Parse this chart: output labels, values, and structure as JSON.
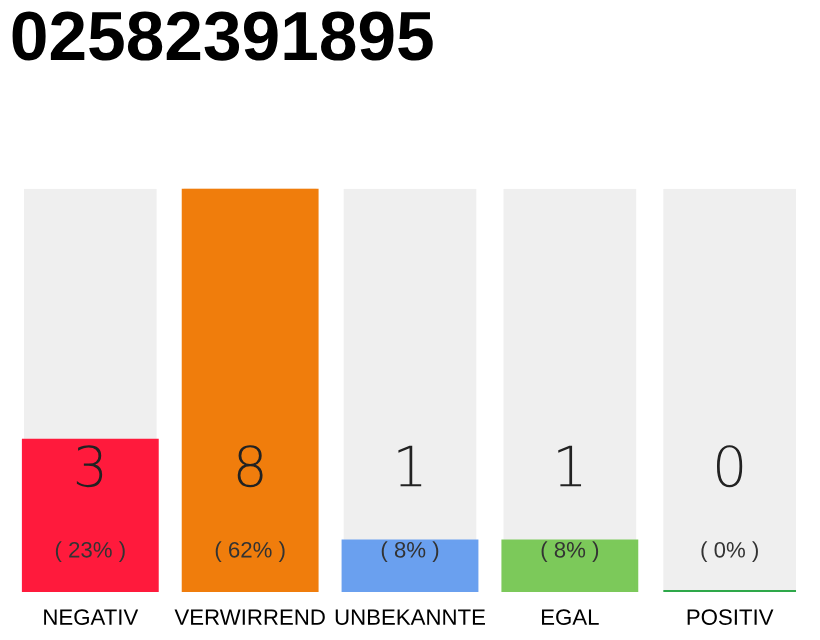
{
  "chart_data": {
    "type": "bar",
    "title": "02582391895",
    "categories": [
      "NEGATIV",
      "VERWIRREND",
      "UNBEKANNTE",
      "EGAL",
      "POSITIV"
    ],
    "values": [
      3,
      8,
      1,
      1,
      0
    ],
    "colors": [
      "#ff1a3c",
      "#f07d0c",
      "#6aa0ef",
      "#7cc95a",
      "#2ea84a"
    ],
    "ylim": [
      0,
      8
    ],
    "tick_labels": "x",
    "grid": false,
    "legend": false,
    "value_labels": [
      "3\n( 23% )",
      "8\n( 62% )",
      "1\n( 8% )",
      "1\n( 8% )",
      "0\n( 0% )"
    ]
  }
}
